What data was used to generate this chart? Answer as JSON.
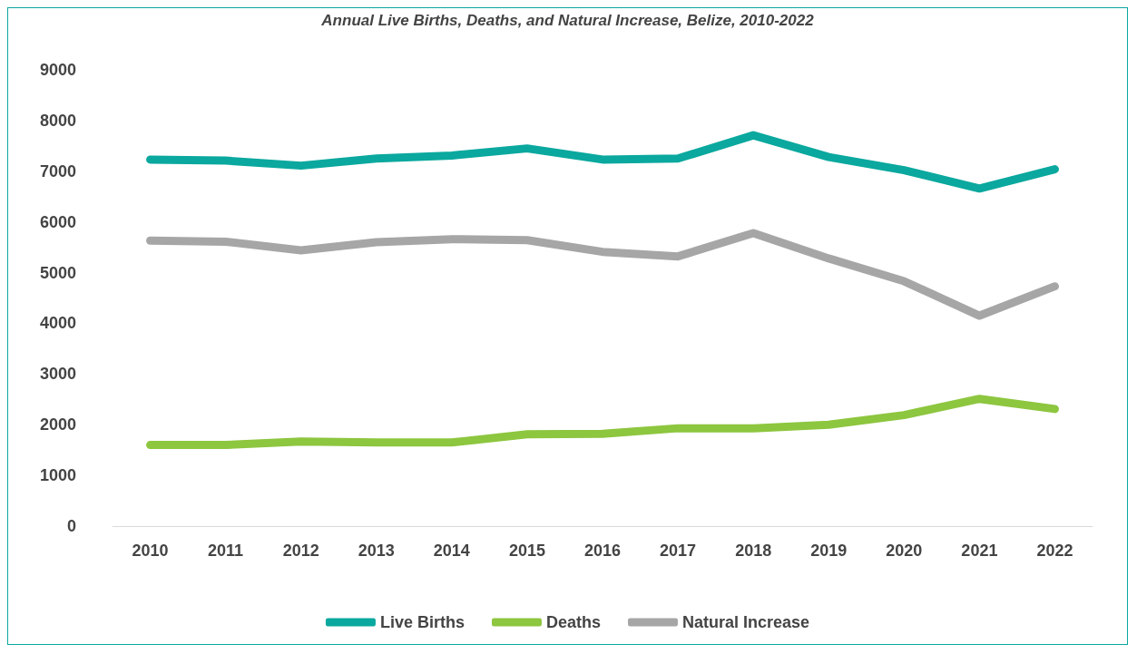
{
  "chart_data": {
    "type": "line",
    "title": "Annual Live Births, Deaths, and Natural Increase, Belize, 2010-2022",
    "categories": [
      "2010",
      "2011",
      "2012",
      "2013",
      "2014",
      "2015",
      "2016",
      "2017",
      "2018",
      "2019",
      "2020",
      "2021",
      "2022"
    ],
    "series": [
      {
        "name": "Live Births",
        "color": "#0aa89e",
        "values": [
          7230,
          7210,
          7110,
          7250,
          7310,
          7450,
          7230,
          7250,
          7710,
          7280,
          7020,
          6660,
          7040
        ]
      },
      {
        "name": "Deaths",
        "color": "#8dc63f",
        "values": [
          1600,
          1600,
          1670,
          1650,
          1650,
          1810,
          1820,
          1930,
          1930,
          2000,
          2190,
          2510,
          2310
        ]
      },
      {
        "name": "Natural Increase",
        "color": "#a6a6a6",
        "values": [
          5630,
          5610,
          5440,
          5600,
          5660,
          5640,
          5410,
          5320,
          5780,
          5280,
          4830,
          4150,
          4730
        ]
      }
    ],
    "ylim": [
      0,
      9000
    ],
    "yticks": [
      0,
      1000,
      2000,
      3000,
      4000,
      5000,
      6000,
      7000,
      8000,
      9000
    ],
    "grid": false,
    "legend": "bottom",
    "marker": "none",
    "line_style": "solid"
  }
}
